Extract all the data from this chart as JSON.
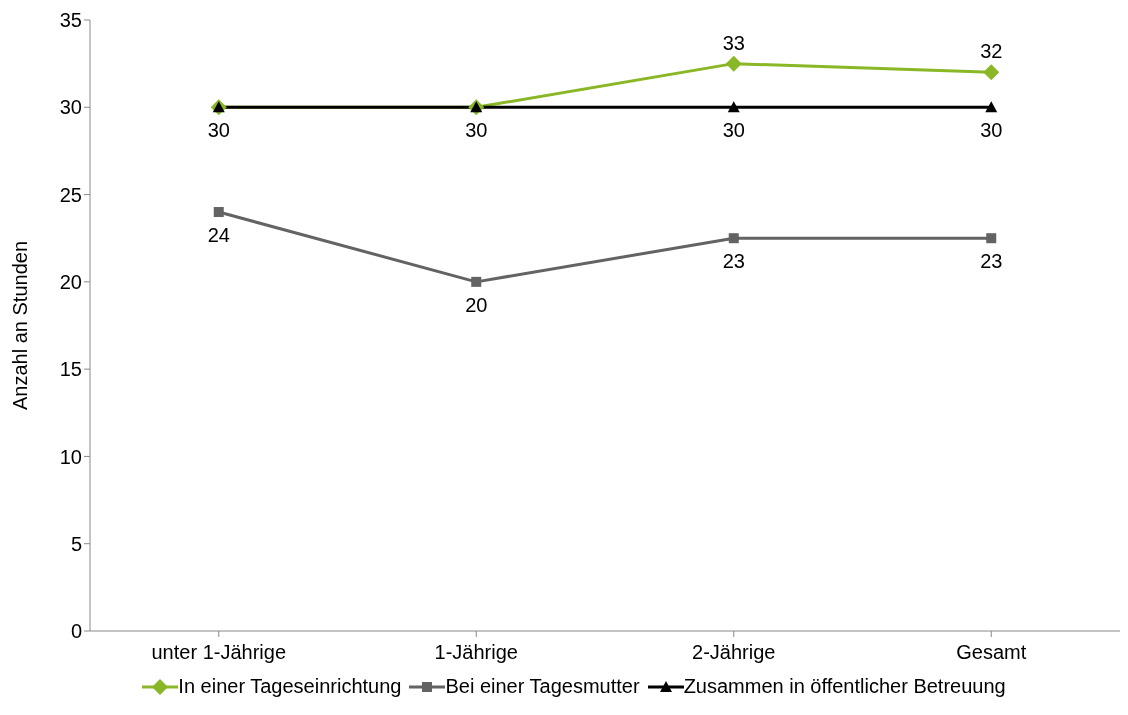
{
  "chart_data": {
    "type": "line",
    "ylabel": "Anzahl an Stunden",
    "categories": [
      "unter 1-Jährige",
      "1-Jährige",
      "2-Jährige",
      "Gesamt"
    ],
    "ylim": [
      0,
      35
    ],
    "yticks": [
      0,
      5,
      10,
      15,
      20,
      25,
      30,
      35
    ],
    "grid": false,
    "legend": "bottom",
    "series": [
      {
        "name": "In einer Tageseinrichtung",
        "color": "#8ab726",
        "marker": "diamond",
        "values": [
          30,
          30,
          32.5,
          32
        ],
        "value_labels": [
          null,
          null,
          "33",
          "32"
        ]
      },
      {
        "name": "Bei einer Tagesmutter",
        "color": "#636363",
        "marker": "square",
        "values": [
          24,
          20,
          22.5,
          22.5
        ],
        "value_labels": [
          "24",
          "20",
          "23",
          "23"
        ]
      },
      {
        "name": "Zusammen in öffentlicher Betreuung",
        "color": "#000000",
        "marker": "triangle",
        "values": [
          30,
          30,
          30,
          30
        ],
        "value_labels": [
          "30",
          "30",
          "30",
          "30"
        ]
      }
    ]
  }
}
